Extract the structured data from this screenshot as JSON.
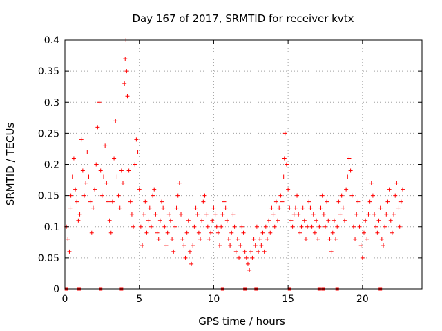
{
  "chart_data": {
    "type": "scatter",
    "title": "Day 167 of 2017, SRMTID for receiver kvtx",
    "xlabel": "GPS time / hours",
    "ylabel": "SRMTID / TECUs",
    "xlim": [
      0,
      24
    ],
    "ylim": [
      0,
      0.4
    ],
    "x_ticks": [
      0,
      5,
      10,
      15,
      20
    ],
    "y_ticks": [
      0,
      0.05,
      0.1,
      0.15,
      0.2,
      0.25,
      0.3,
      0.35,
      0.4
    ],
    "x_tick_labels": [
      "0",
      "5",
      "10",
      "15",
      "20"
    ],
    "y_tick_labels": [
      "0",
      "0.05",
      "0.1",
      "0.15",
      "0.2",
      "0.25",
      "0.3",
      "0.35",
      "0.4"
    ],
    "grid": true,
    "marker": "+",
    "series": [
      {
        "name": "SRMTID",
        "color": "#ff0000",
        "points": [
          [
            0.1,
            0.1
          ],
          [
            0.2,
            0.08
          ],
          [
            0.3,
            0.06
          ],
          [
            0.35,
            0.13
          ],
          [
            0.4,
            0.15
          ],
          [
            0.5,
            0.18
          ],
          [
            0.6,
            0.21
          ],
          [
            0.7,
            0.16
          ],
          [
            0.8,
            0.14
          ],
          [
            0.9,
            0.11
          ],
          [
            1.0,
            0.12
          ],
          [
            1.1,
            0.24
          ],
          [
            1.2,
            0.19
          ],
          [
            1.3,
            0.15
          ],
          [
            1.4,
            0.17
          ],
          [
            1.5,
            0.22
          ],
          [
            1.6,
            0.18
          ],
          [
            1.7,
            0.14
          ],
          [
            1.8,
            0.09
          ],
          [
            1.9,
            0.13
          ],
          [
            2.0,
            0.16
          ],
          [
            2.1,
            0.2
          ],
          [
            2.2,
            0.26
          ],
          [
            2.3,
            0.3
          ],
          [
            2.4,
            0.19
          ],
          [
            2.5,
            0.15
          ],
          [
            2.6,
            0.18
          ],
          [
            2.7,
            0.23
          ],
          [
            2.8,
            0.17
          ],
          [
            2.9,
            0.14
          ],
          [
            3.0,
            0.11
          ],
          [
            3.1,
            0.09
          ],
          [
            3.2,
            0.14
          ],
          [
            3.3,
            0.21
          ],
          [
            3.4,
            0.27
          ],
          [
            3.5,
            0.18
          ],
          [
            3.6,
            0.15
          ],
          [
            3.7,
            0.13
          ],
          [
            3.8,
            0.19
          ],
          [
            3.9,
            0.17
          ],
          [
            4.0,
            0.33
          ],
          [
            4.05,
            0.37
          ],
          [
            4.1,
            0.4
          ],
          [
            4.15,
            0.35
          ],
          [
            4.2,
            0.31
          ],
          [
            4.3,
            0.19
          ],
          [
            4.4,
            0.14
          ],
          [
            4.5,
            0.12
          ],
          [
            4.6,
            0.1
          ],
          [
            4.7,
            0.2
          ],
          [
            4.8,
            0.24
          ],
          [
            4.9,
            0.22
          ],
          [
            5.0,
            0.16
          ],
          [
            5.1,
            0.1
          ],
          [
            5.2,
            0.07
          ],
          [
            5.3,
            0.12
          ],
          [
            5.4,
            0.14
          ],
          [
            5.5,
            0.09
          ],
          [
            5.6,
            0.11
          ],
          [
            5.7,
            0.13
          ],
          [
            5.8,
            0.1
          ],
          [
            5.9,
            0.15
          ],
          [
            6.0,
            0.16
          ],
          [
            6.1,
            0.12
          ],
          [
            6.2,
            0.09
          ],
          [
            6.3,
            0.08
          ],
          [
            6.4,
            0.11
          ],
          [
            6.5,
            0.14
          ],
          [
            6.6,
            0.13
          ],
          [
            6.7,
            0.1
          ],
          [
            6.8,
            0.07
          ],
          [
            6.9,
            0.09
          ],
          [
            7.0,
            0.12
          ],
          [
            7.1,
            0.11
          ],
          [
            7.2,
            0.08
          ],
          [
            7.3,
            0.06
          ],
          [
            7.4,
            0.1
          ],
          [
            7.5,
            0.13
          ],
          [
            7.6,
            0.15
          ],
          [
            7.7,
            0.17
          ],
          [
            7.8,
            0.12
          ],
          [
            7.9,
            0.08
          ],
          [
            8.0,
            0.07
          ],
          [
            8.1,
            0.05
          ],
          [
            8.2,
            0.09
          ],
          [
            8.3,
            0.11
          ],
          [
            8.4,
            0.06
          ],
          [
            8.5,
            0.04
          ],
          [
            8.6,
            0.07
          ],
          [
            8.7,
            0.1
          ],
          [
            8.8,
            0.13
          ],
          [
            8.9,
            0.12
          ],
          [
            9.0,
            0.09
          ],
          [
            9.1,
            0.08
          ],
          [
            9.2,
            0.11
          ],
          [
            9.3,
            0.14
          ],
          [
            9.4,
            0.15
          ],
          [
            9.5,
            0.12
          ],
          [
            9.6,
            0.1
          ],
          [
            9.7,
            0.08
          ],
          [
            9.8,
            0.09
          ],
          [
            9.9,
            0.11
          ],
          [
            10.0,
            0.13
          ],
          [
            10.1,
            0.12
          ],
          [
            10.2,
            0.1
          ],
          [
            10.3,
            0.09
          ],
          [
            10.4,
            0.07
          ],
          [
            10.5,
            0.1
          ],
          [
            10.6,
            0.12
          ],
          [
            10.7,
            0.14
          ],
          [
            10.8,
            0.13
          ],
          [
            10.9,
            0.11
          ],
          [
            11.0,
            0.08
          ],
          [
            11.1,
            0.07
          ],
          [
            11.2,
            0.09
          ],
          [
            11.3,
            0.12
          ],
          [
            11.4,
            0.1
          ],
          [
            11.5,
            0.06
          ],
          [
            11.6,
            0.08
          ],
          [
            11.7,
            0.05
          ],
          [
            11.8,
            0.07
          ],
          [
            11.9,
            0.1
          ],
          [
            12.0,
            0.09
          ],
          [
            12.1,
            0.06
          ],
          [
            12.2,
            0.05
          ],
          [
            12.3,
            0.04
          ],
          [
            12.4,
            0.03
          ],
          [
            12.5,
            0.06
          ],
          [
            12.6,
            0.05
          ],
          [
            12.7,
            0.08
          ],
          [
            12.8,
            0.07
          ],
          [
            12.9,
            0.1
          ],
          [
            13.0,
            0.06
          ],
          [
            13.1,
            0.08
          ],
          [
            13.2,
            0.07
          ],
          [
            13.3,
            0.09
          ],
          [
            13.4,
            0.06
          ],
          [
            13.5,
            0.1
          ],
          [
            13.6,
            0.08
          ],
          [
            13.7,
            0.11
          ],
          [
            13.8,
            0.09
          ],
          [
            13.9,
            0.13
          ],
          [
            14.0,
            0.12
          ],
          [
            14.1,
            0.1
          ],
          [
            14.2,
            0.14
          ],
          [
            14.3,
            0.11
          ],
          [
            14.4,
            0.13
          ],
          [
            14.5,
            0.15
          ],
          [
            14.6,
            0.14
          ],
          [
            14.7,
            0.18
          ],
          [
            14.75,
            0.21
          ],
          [
            14.8,
            0.25
          ],
          [
            14.9,
            0.2
          ],
          [
            15.0,
            0.16
          ],
          [
            15.1,
            0.13
          ],
          [
            15.2,
            0.11
          ],
          [
            15.3,
            0.1
          ],
          [
            15.4,
            0.12
          ],
          [
            15.5,
            0.13
          ],
          [
            15.6,
            0.15
          ],
          [
            15.7,
            0.12
          ],
          [
            15.8,
            0.09
          ],
          [
            15.9,
            0.1
          ],
          [
            16.0,
            0.13
          ],
          [
            16.1,
            0.11
          ],
          [
            16.2,
            0.08
          ],
          [
            16.3,
            0.1
          ],
          [
            16.4,
            0.14
          ],
          [
            16.5,
            0.13
          ],
          [
            16.6,
            0.1
          ],
          [
            16.7,
            0.12
          ],
          [
            16.8,
            0.09
          ],
          [
            16.9,
            0.11
          ],
          [
            17.0,
            0.08
          ],
          [
            17.1,
            0.1
          ],
          [
            17.2,
            0.13
          ],
          [
            17.3,
            0.15
          ],
          [
            17.4,
            0.12
          ],
          [
            17.5,
            0.1
          ],
          [
            17.6,
            0.14
          ],
          [
            17.7,
            0.11
          ],
          [
            17.8,
            0.08
          ],
          [
            17.9,
            0.06
          ],
          [
            18.0,
            0.09
          ],
          [
            18.1,
            0.11
          ],
          [
            18.2,
            0.08
          ],
          [
            18.3,
            0.1
          ],
          [
            18.4,
            0.14
          ],
          [
            18.5,
            0.12
          ],
          [
            18.6,
            0.15
          ],
          [
            18.7,
            0.13
          ],
          [
            18.8,
            0.11
          ],
          [
            18.9,
            0.16
          ],
          [
            19.0,
            0.18
          ],
          [
            19.1,
            0.21
          ],
          [
            19.2,
            0.19
          ],
          [
            19.3,
            0.15
          ],
          [
            19.4,
            0.1
          ],
          [
            19.5,
            0.08
          ],
          [
            19.6,
            0.12
          ],
          [
            19.7,
            0.14
          ],
          [
            19.8,
            0.1
          ],
          [
            19.9,
            0.07
          ],
          [
            20.0,
            0.05
          ],
          [
            20.1,
            0.09
          ],
          [
            20.2,
            0.11
          ],
          [
            20.3,
            0.08
          ],
          [
            20.4,
            0.12
          ],
          [
            20.5,
            0.14
          ],
          [
            20.6,
            0.17
          ],
          [
            20.7,
            0.15
          ],
          [
            20.8,
            0.12
          ],
          [
            20.9,
            0.1
          ],
          [
            21.0,
            0.09
          ],
          [
            21.1,
            0.11
          ],
          [
            21.2,
            0.13
          ],
          [
            21.3,
            0.08
          ],
          [
            21.4,
            0.07
          ],
          [
            21.5,
            0.1
          ],
          [
            21.6,
            0.12
          ],
          [
            21.7,
            0.14
          ],
          [
            21.8,
            0.16
          ],
          [
            21.9,
            0.11
          ],
          [
            22.0,
            0.09
          ],
          [
            22.1,
            0.12
          ],
          [
            22.2,
            0.15
          ],
          [
            22.3,
            0.17
          ],
          [
            22.4,
            0.13
          ],
          [
            22.5,
            0.1
          ],
          [
            22.6,
            0.14
          ],
          [
            22.7,
            0.16
          ]
        ]
      },
      {
        "name": "zero-level markers",
        "color": "#ff0000",
        "marker": "square",
        "points": [
          [
            0.1,
            0
          ],
          [
            0.95,
            0
          ],
          [
            2.4,
            0
          ],
          [
            3.8,
            0
          ],
          [
            10.6,
            0
          ],
          [
            12.1,
            0
          ],
          [
            12.85,
            0
          ],
          [
            15.1,
            0
          ],
          [
            17.1,
            0
          ],
          [
            17.35,
            0
          ],
          [
            18.3,
            0
          ],
          [
            21.2,
            0
          ]
        ]
      }
    ]
  }
}
